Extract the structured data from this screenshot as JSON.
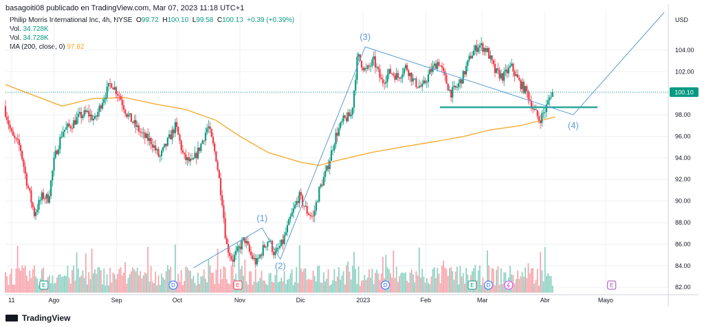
{
  "header": {
    "published": "basagoiti08 publicado en TradingView.com, Mar 07, 2023 11:18 UTC+1"
  },
  "legend": {
    "symbol": "Philip Morris International Inc, 4h, NYSE",
    "o_label": "O",
    "o": "99.72",
    "h_label": "H",
    "h": "100.10",
    "l_label": "L",
    "l": "99.58",
    "c_label": "C",
    "c": "100.10",
    "change": "+0.39 (+0.39%)",
    "vol1_label": "Vol.",
    "vol1": "34.728K",
    "vol2_label": "Vol.",
    "vol2": "34.728K",
    "ma_label": "MA (200, close, 0)",
    "ma": "97.82"
  },
  "branding": {
    "name": "TradingView"
  },
  "colors": {
    "up": "#089981",
    "down": "#f23645",
    "ma": "#f5a623",
    "wave": "#5b9bd5",
    "support": "#26a69a",
    "grid": "#eef0f3"
  },
  "chart_data": {
    "type": "candlestick",
    "currency": "USD",
    "ylim": [
      81.5,
      107.5
    ],
    "y_ticks": [
      82,
      84,
      86,
      88,
      90,
      92,
      94,
      96,
      98,
      100,
      102,
      104
    ],
    "y_tick_labels": [
      "82.00",
      "84.00",
      "86.00",
      "88.00",
      "90.00",
      "92.00",
      "94.00",
      "96.00",
      "98.00",
      "100.00",
      "102.00",
      "104.00"
    ],
    "x_range": [
      "2022-07-08",
      "2023-06-01"
    ],
    "x_ticks": [
      {
        "date": "2022-07-11",
        "label": "11"
      },
      {
        "date": "2022-08-01",
        "label": "Ago"
      },
      {
        "date": "2022-09-01",
        "label": "Sep"
      },
      {
        "date": "2022-10-01",
        "label": "Oct"
      },
      {
        "date": "2022-11-01",
        "label": "Nov"
      },
      {
        "date": "2022-12-01",
        "label": "Dic"
      },
      {
        "date": "2023-01-01",
        "label": "2023"
      },
      {
        "date": "2023-02-01",
        "label": "Feb"
      },
      {
        "date": "2023-03-01",
        "label": "Mar"
      },
      {
        "date": "2023-04-01",
        "label": "Abr"
      },
      {
        "date": "2023-05-01",
        "label": "Mayo"
      }
    ],
    "last_price": "100.10",
    "last_value": 100.1,
    "price_path": [
      [
        "2022-07-08",
        98.8
      ],
      [
        "2022-07-12",
        96.0
      ],
      [
        "2022-07-16",
        95.0
      ],
      [
        "2022-07-19",
        92.0
      ],
      [
        "2022-07-23",
        88.8
      ],
      [
        "2022-07-27",
        90.5
      ],
      [
        "2022-07-30",
        90.2
      ],
      [
        "2022-08-02",
        94.0
      ],
      [
        "2022-08-06",
        96.5
      ],
      [
        "2022-08-10",
        97.0
      ],
      [
        "2022-08-14",
        97.8
      ],
      [
        "2022-08-18",
        98.2
      ],
      [
        "2022-08-22",
        97.5
      ],
      [
        "2022-08-26",
        99.5
      ],
      [
        "2022-08-30",
        101.0
      ],
      [
        "2022-09-03",
        99.8
      ],
      [
        "2022-09-07",
        98.0
      ],
      [
        "2022-09-11",
        97.0
      ],
      [
        "2022-09-15",
        96.0
      ],
      [
        "2022-09-19",
        95.5
      ],
      [
        "2022-09-23",
        94.0
      ],
      [
        "2022-09-27",
        95.5
      ],
      [
        "2022-10-01",
        97.0
      ],
      [
        "2022-10-05",
        94.0
      ],
      [
        "2022-10-09",
        93.5
      ],
      [
        "2022-10-13",
        95.0
      ],
      [
        "2022-10-17",
        97.0
      ],
      [
        "2022-10-21",
        94.0
      ],
      [
        "2022-10-24",
        90.0
      ],
      [
        "2022-10-26",
        86.0
      ],
      [
        "2022-10-29",
        84.5
      ],
      [
        "2022-11-01",
        85.5
      ],
      [
        "2022-11-04",
        86.5
      ],
      [
        "2022-11-07",
        85.0
      ],
      [
        "2022-11-10",
        84.2
      ],
      [
        "2022-11-13",
        85.5
      ],
      [
        "2022-11-16",
        86.5
      ],
      [
        "2022-11-19",
        85.0
      ],
      [
        "2022-11-23",
        86.2
      ],
      [
        "2022-11-27",
        88.5
      ],
      [
        "2022-12-01",
        90.5
      ],
      [
        "2022-12-05",
        89.0
      ],
      [
        "2022-12-08",
        88.5
      ],
      [
        "2022-12-11",
        91.0
      ],
      [
        "2022-12-15",
        93.0
      ],
      [
        "2022-12-19",
        96.0
      ],
      [
        "2022-12-23",
        97.5
      ],
      [
        "2022-12-27",
        98.0
      ],
      [
        "2022-12-30",
        103.5
      ],
      [
        "2023-01-03",
        102.0
      ],
      [
        "2023-01-07",
        103.0
      ],
      [
        "2023-01-11",
        101.0
      ],
      [
        "2023-01-15",
        102.0
      ],
      [
        "2023-01-19",
        101.5
      ],
      [
        "2023-01-23",
        102.5
      ],
      [
        "2023-01-27",
        101.0
      ],
      [
        "2023-01-31",
        100.5
      ],
      [
        "2023-02-04",
        102.0
      ],
      [
        "2023-02-08",
        103.0
      ],
      [
        "2023-02-11",
        101.5
      ],
      [
        "2023-02-14",
        100.0
      ],
      [
        "2023-02-17",
        100.5
      ],
      [
        "2023-02-20",
        101.5
      ],
      [
        "2023-02-24",
        103.5
      ],
      [
        "2023-02-28",
        104.5
      ],
      [
        "2023-03-04",
        104.0
      ],
      [
        "2023-03-08",
        102.0
      ],
      [
        "2023-03-12",
        101.5
      ],
      [
        "2023-03-16",
        102.5
      ],
      [
        "2023-03-20",
        101.0
      ],
      [
        "2023-03-24",
        100.0
      ],
      [
        "2023-03-27",
        98.5
      ],
      [
        "2023-03-30",
        97.5
      ],
      [
        "2023-04-02",
        98.5
      ],
      [
        "2023-04-05",
        100.1
      ]
    ],
    "ma200": [
      [
        "2022-07-08",
        100.8
      ],
      [
        "2022-07-22",
        99.8
      ],
      [
        "2022-08-05",
        98.8
      ],
      [
        "2022-08-20",
        99.5
      ],
      [
        "2022-09-05",
        99.6
      ],
      [
        "2022-09-20",
        99.0
      ],
      [
        "2022-10-05",
        98.5
      ],
      [
        "2022-10-20",
        97.5
      ],
      [
        "2022-11-01",
        96.0
      ],
      [
        "2022-11-15",
        94.5
      ],
      [
        "2022-12-01",
        93.6
      ],
      [
        "2022-12-10",
        93.3
      ],
      [
        "2022-12-20",
        93.8
      ],
      [
        "2023-01-05",
        94.5
      ],
      [
        "2023-01-20",
        95.0
      ],
      [
        "2023-02-05",
        95.5
      ],
      [
        "2023-02-20",
        96.0
      ],
      [
        "2023-03-05",
        96.6
      ],
      [
        "2023-03-20",
        97.0
      ],
      [
        "2023-04-06",
        97.8
      ]
    ],
    "waves": {
      "points": [
        [
          "2022-10-09",
          83.8
        ],
        [
          "2022-11-12",
          87.5
        ],
        [
          "2022-11-21",
          84.6
        ],
        [
          "2023-01-02",
          104.3
        ],
        [
          "2023-04-15",
          98.0
        ],
        [
          "2023-05-30",
          107.5
        ]
      ],
      "labels": [
        "(1)",
        "(2)",
        "(3)",
        "(4)"
      ]
    },
    "support": {
      "value": 98.7,
      "from": "2023-02-08",
      "to": "2023-04-27"
    },
    "events": [
      {
        "date": "2022-07-27",
        "kind": "E"
      },
      {
        "date": "2022-09-29",
        "kind": "D"
      },
      {
        "date": "2022-10-31",
        "kind": "E"
      },
      {
        "date": "2023-01-12",
        "kind": "D"
      },
      {
        "date": "2023-02-24",
        "kind": "E"
      },
      {
        "date": "2023-03-04",
        "kind": "D"
      },
      {
        "date": "2023-03-14",
        "kind": "split"
      },
      {
        "date": "2023-05-04",
        "kind": "E"
      }
    ]
  }
}
